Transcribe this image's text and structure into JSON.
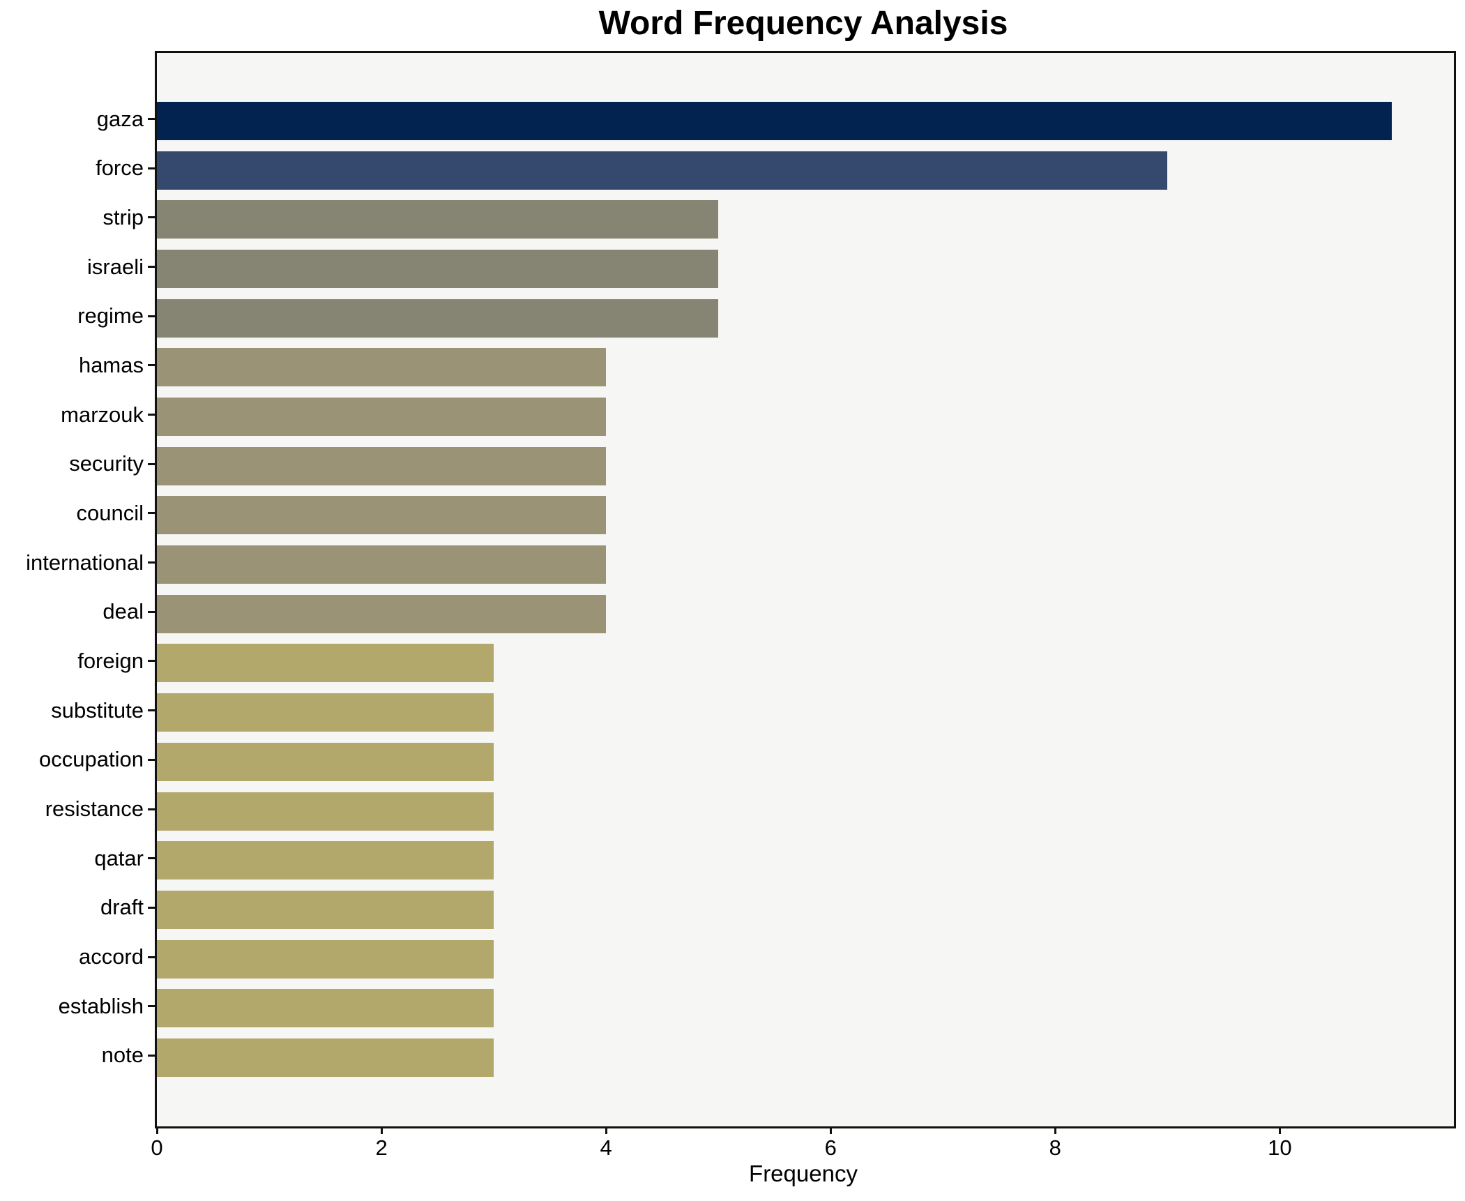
{
  "title": "Word Frequency Analysis",
  "axes": {
    "xlabel": "Frequency"
  },
  "chart_data": {
    "type": "bar",
    "orientation": "horizontal",
    "title": "Word Frequency Analysis",
    "xlabel": "Frequency",
    "ylabel": "",
    "categories": [
      "gaza",
      "force",
      "strip",
      "israeli",
      "regime",
      "hamas",
      "marzouk",
      "security",
      "council",
      "international",
      "deal",
      "foreign",
      "substitute",
      "occupation",
      "resistance",
      "qatar",
      "draft",
      "accord",
      "establish",
      "note"
    ],
    "values": [
      11,
      9,
      5,
      5,
      5,
      4,
      4,
      4,
      4,
      4,
      4,
      3,
      3,
      3,
      3,
      3,
      3,
      3,
      3,
      3
    ],
    "bar_colors": [
      "#022350",
      "#35486d",
      "#868472",
      "#868472",
      "#868472",
      "#9b9375",
      "#9b9375",
      "#9b9375",
      "#9b9375",
      "#9b9375",
      "#9b9375",
      "#b2a86b",
      "#b2a86b",
      "#b2a86b",
      "#b2a86b",
      "#b2a86b",
      "#b2a86b",
      "#b2a86b",
      "#b2a86b",
      "#b2a86b"
    ],
    "xlim": [
      0,
      11.55
    ],
    "x_ticks": [
      0,
      2,
      4,
      6,
      8,
      10
    ],
    "grid": false,
    "legend": false,
    "colors": {
      "figure_background": "#ffffff",
      "plot_background": "#f6f6f4",
      "spine": "#111111",
      "text": "#000000"
    }
  }
}
